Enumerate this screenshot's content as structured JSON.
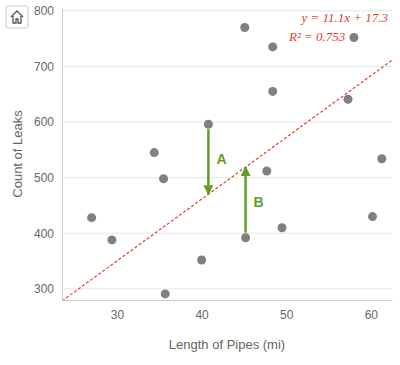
{
  "chart_data": {
    "type": "scatter",
    "x_label": "Length of Pipes (mi)",
    "y_label": "Count of Leaks",
    "x": [
      27.0,
      29.4,
      34.4,
      35.5,
      35.7,
      40.0,
      40.8,
      45.1,
      45.2,
      47.7,
      48.4,
      48.4,
      49.5,
      57.3,
      58.0,
      60.2,
      61.3
    ],
    "values": [
      428,
      388,
      545,
      498,
      291,
      352,
      596,
      770,
      392,
      512,
      735,
      655,
      410,
      641,
      752,
      430,
      534
    ],
    "color": "#808080",
    "marker": "circle",
    "xlim": [
      23.5,
      62.5
    ],
    "xticks": [
      30,
      40,
      50,
      60
    ],
    "ylim": [
      280,
      805
    ],
    "yticks": [
      300,
      400,
      500,
      600,
      700,
      800
    ],
    "grid": true,
    "trendline": {
      "slope": 11.1,
      "intercept": 17.3,
      "color": "#d9442e",
      "line_style": "dashed",
      "label": "y = 11.1x + 17.3",
      "r2_label": "R² = 0.753"
    },
    "annotations": [
      {
        "text": "A",
        "x": 40.8,
        "y": [
          596,
          470
        ]
      },
      {
        "text": "B",
        "x": 45.2,
        "y": [
          392,
          519
        ]
      }
    ]
  }
}
